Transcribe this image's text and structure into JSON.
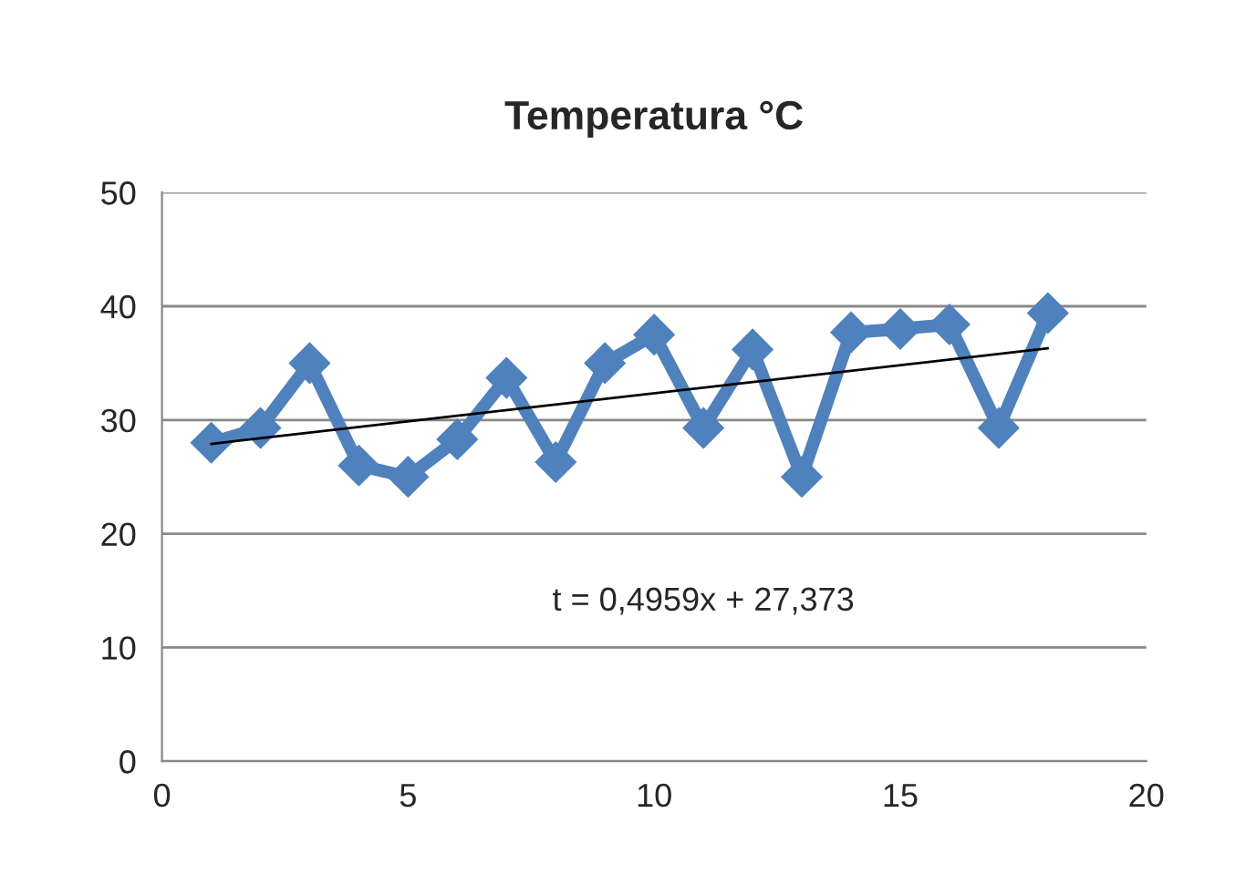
{
  "chart_data": {
    "type": "line",
    "title": "Temperatura °C",
    "x": [
      1,
      2,
      3,
      4,
      5,
      6,
      7,
      8,
      9,
      10,
      11,
      12,
      13,
      14,
      15,
      16,
      17,
      18
    ],
    "series": [
      {
        "color": "#4f81bd",
        "values": [
          28.0,
          29.3,
          35.0,
          26.0,
          25.0,
          28.3,
          33.7,
          26.3,
          35.0,
          37.5,
          29.3,
          36.2,
          25.0,
          37.7,
          38.0,
          38.4,
          29.3,
          39.4
        ],
        "marker": "diamond",
        "line_style": "solid"
      },
      {
        "color": "#000000",
        "x": [
          1,
          18
        ],
        "values": [
          27.9,
          36.3
        ],
        "marker": "none",
        "line_style": "solid"
      }
    ],
    "annotations": [
      "t = 0,4959x + 27,373"
    ],
    "xlim": [
      0,
      20
    ],
    "xticks": [
      0,
      5,
      10,
      15,
      20
    ],
    "ylim": [
      0,
      50
    ],
    "yticks": [
      0,
      10,
      20,
      30,
      40,
      50
    ],
    "grid": "y",
    "legend": false
  }
}
